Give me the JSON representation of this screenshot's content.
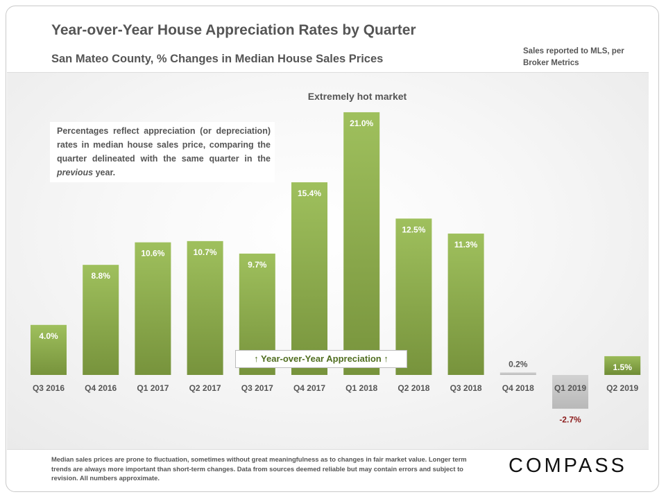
{
  "title": "Year-over-Year House Appreciation Rates by Quarter",
  "subtitle": "San Mateo County, % Changes in Median House Sales Prices",
  "source_note": "Sales reported to MLS, per Broker Metrics",
  "annotation_box": {
    "text_before": "Percentages reflect appreciation (or depreciation) rates in median house sales price, comparing the quarter delineated with the same quarter in the ",
    "emphasis": "previous",
    "text_after": " year."
  },
  "hot_market_label": "Extremely hot market",
  "legend_box": "↑ Year-over-Year Appreciation ↑",
  "footer": "Median sales prices are prone to fluctuation, sometimes without great meaningfulness as to changes in fair market value. Longer term trends are always more important than short-term changes. Data from sources deemed reliable but may contain errors and subject to revision. All numbers approximate.",
  "logo": "COMPASS",
  "colors": {
    "bar_green_top": "#9bbb59",
    "bar_green_bottom": "#77933c",
    "bar_gray": "#c8c8c8",
    "negative_label": "#8b1a1a"
  },
  "chart_data": {
    "type": "bar",
    "categories": [
      "Q3 2016",
      "Q4 2016",
      "Q1 2017",
      "Q2 2017",
      "Q3 2017",
      "Q4 2017",
      "Q1 2018",
      "Q2 2018",
      "Q3 2018",
      "Q4 2018",
      "Q1 2019",
      "Q2 2019"
    ],
    "values": [
      4.0,
      8.8,
      10.6,
      10.7,
      9.7,
      15.4,
      21.0,
      12.5,
      11.3,
      0.2,
      -2.7,
      1.5
    ],
    "data_labels": [
      "4.0%",
      "8.8%",
      "10.6%",
      "10.7%",
      "9.7%",
      "15.4%",
      "21.0%",
      "12.5%",
      "11.3%",
      "0.2%",
      "-2.7%",
      "1.5%"
    ],
    "bar_styles": [
      "green",
      "green",
      "green",
      "green",
      "green",
      "green",
      "green",
      "green",
      "green",
      "gray",
      "gray",
      "green"
    ],
    "ylim": [
      -3,
      21
    ],
    "grid": false,
    "legend": "none"
  }
}
